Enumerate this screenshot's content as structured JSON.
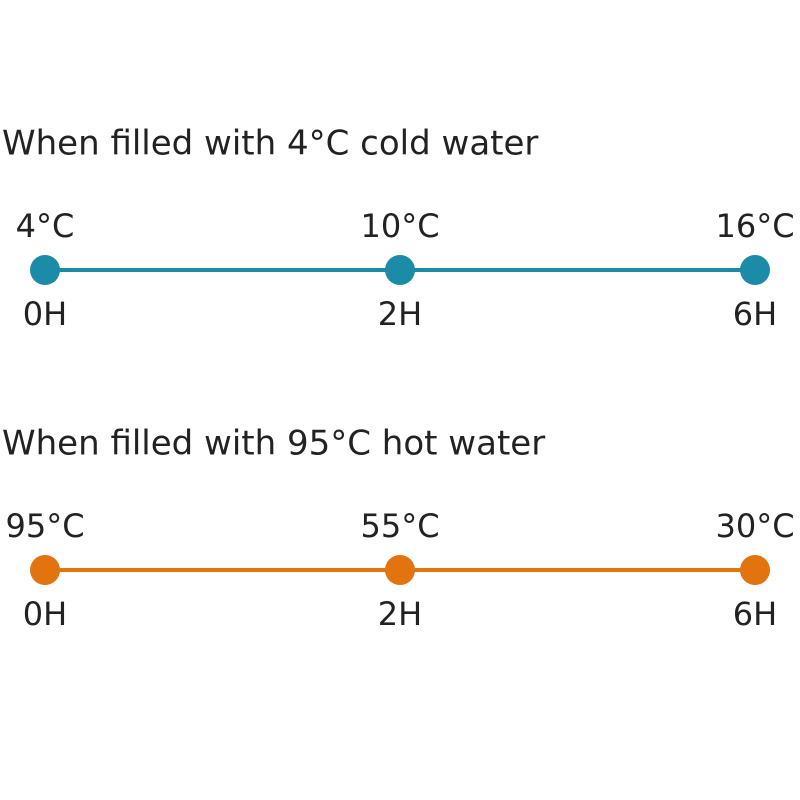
{
  "timelines": [
    {
      "title": "When filled with 4°C cold water",
      "color": "#1b8ba8",
      "points": [
        {
          "temp": "4°C",
          "time": "0H"
        },
        {
          "temp": "10°C",
          "time": "2H"
        },
        {
          "temp": "16°C",
          "time": "6H"
        }
      ]
    },
    {
      "title": "When filled with 95°C hot water",
      "color": "#e1740f",
      "points": [
        {
          "temp": "95°C",
          "time": "0H"
        },
        {
          "temp": "55°C",
          "time": "2H"
        },
        {
          "temp": "30°C",
          "time": "6H"
        }
      ]
    }
  ]
}
